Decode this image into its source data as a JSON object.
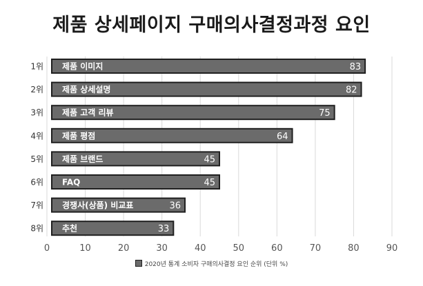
{
  "chart_data": {
    "type": "bar",
    "orientation": "horizontal",
    "title": "제품 상세페이지 구매의사결정과정 요인",
    "ranks": [
      "1위",
      "2위",
      "3위",
      "4위",
      "5위",
      "6위",
      "7위",
      "8위"
    ],
    "categories": [
      "제품 이미지",
      "제품 상세설명",
      "제품 고객 리뷰",
      "제품 평점",
      "제품 브랜드",
      "FAQ",
      "경쟁사(상품) 비교표",
      "추천"
    ],
    "values": [
      83,
      82,
      75,
      64,
      45,
      45,
      36,
      33
    ],
    "xlim": [
      0,
      90
    ],
    "xticks": [
      0,
      10,
      20,
      30,
      40,
      50,
      60,
      70,
      80,
      90
    ],
    "grid": true,
    "legend_label": "2020년 통계 소비자 구매의사결정 요인 순위 (단위 %)",
    "legend_position": "bottom",
    "colors": {
      "bar": "#6b6b6b",
      "bar_border": "#1f1f1f",
      "grid": "#d9d9d9"
    }
  }
}
